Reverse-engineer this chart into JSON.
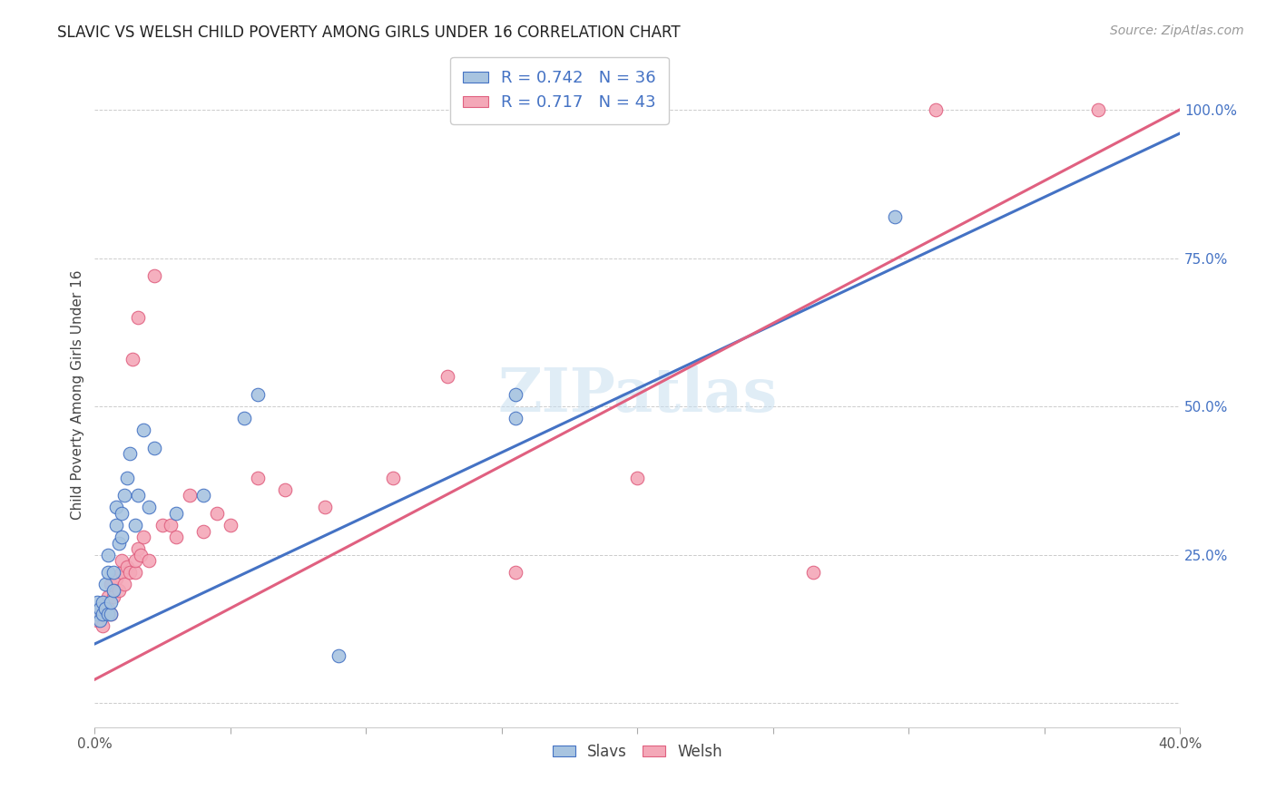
{
  "title": "SLAVIC VS WELSH CHILD POVERTY AMONG GIRLS UNDER 16 CORRELATION CHART",
  "source": "Source: ZipAtlas.com",
  "xlabel": "",
  "ylabel": "Child Poverty Among Girls Under 16",
  "xmin": 0.0,
  "xmax": 0.4,
  "ymin": -0.04,
  "ymax": 1.08,
  "xticks": [
    0.0,
    0.05,
    0.1,
    0.15,
    0.2,
    0.25,
    0.3,
    0.35,
    0.4
  ],
  "xtick_labels": [
    "0.0%",
    "",
    "",
    "",
    "",
    "",
    "",
    "",
    "40.0%"
  ],
  "yticks": [
    0.0,
    0.25,
    0.5,
    0.75,
    1.0
  ],
  "ytick_labels": [
    "",
    "25.0%",
    "50.0%",
    "75.0%",
    "100.0%"
  ],
  "slavs_R": 0.742,
  "slavs_N": 36,
  "welsh_R": 0.717,
  "welsh_N": 43,
  "slavs_color": "#a8c4e0",
  "welsh_color": "#f4a8b8",
  "slavs_line_color": "#4472c4",
  "welsh_line_color": "#e06080",
  "background_color": "#ffffff",
  "watermark_text": "ZIPatlas",
  "slavs_line_x0": 0.0,
  "slavs_line_y0": 0.1,
  "slavs_line_x1": 0.4,
  "slavs_line_y1": 0.96,
  "welsh_line_x0": 0.0,
  "welsh_line_y0": 0.04,
  "welsh_line_x1": 0.4,
  "welsh_line_y1": 1.0,
  "slavs_x": [
    0.001,
    0.001,
    0.002,
    0.002,
    0.003,
    0.003,
    0.004,
    0.004,
    0.005,
    0.005,
    0.005,
    0.006,
    0.006,
    0.007,
    0.007,
    0.008,
    0.008,
    0.009,
    0.01,
    0.01,
    0.011,
    0.012,
    0.013,
    0.015,
    0.016,
    0.018,
    0.02,
    0.022,
    0.03,
    0.04,
    0.055,
    0.06,
    0.09,
    0.155,
    0.155,
    0.295
  ],
  "slavs_y": [
    0.15,
    0.17,
    0.14,
    0.16,
    0.15,
    0.17,
    0.16,
    0.2,
    0.15,
    0.22,
    0.25,
    0.15,
    0.17,
    0.19,
    0.22,
    0.3,
    0.33,
    0.27,
    0.32,
    0.28,
    0.35,
    0.38,
    0.42,
    0.3,
    0.35,
    0.46,
    0.33,
    0.43,
    0.32,
    0.35,
    0.48,
    0.52,
    0.08,
    0.48,
    0.52,
    0.82
  ],
  "welsh_x": [
    0.001,
    0.002,
    0.003,
    0.003,
    0.004,
    0.005,
    0.005,
    0.006,
    0.006,
    0.007,
    0.008,
    0.009,
    0.01,
    0.01,
    0.011,
    0.012,
    0.013,
    0.014,
    0.015,
    0.015,
    0.016,
    0.016,
    0.017,
    0.018,
    0.02,
    0.022,
    0.025,
    0.028,
    0.03,
    0.035,
    0.04,
    0.045,
    0.05,
    0.06,
    0.07,
    0.085,
    0.11,
    0.13,
    0.155,
    0.2,
    0.265,
    0.31,
    0.37
  ],
  "welsh_y": [
    0.14,
    0.15,
    0.13,
    0.16,
    0.17,
    0.16,
    0.18,
    0.15,
    0.2,
    0.18,
    0.21,
    0.19,
    0.22,
    0.24,
    0.2,
    0.23,
    0.22,
    0.58,
    0.22,
    0.24,
    0.65,
    0.26,
    0.25,
    0.28,
    0.24,
    0.72,
    0.3,
    0.3,
    0.28,
    0.35,
    0.29,
    0.32,
    0.3,
    0.38,
    0.36,
    0.33,
    0.38,
    0.55,
    0.22,
    0.38,
    0.22,
    1.0,
    1.0
  ]
}
